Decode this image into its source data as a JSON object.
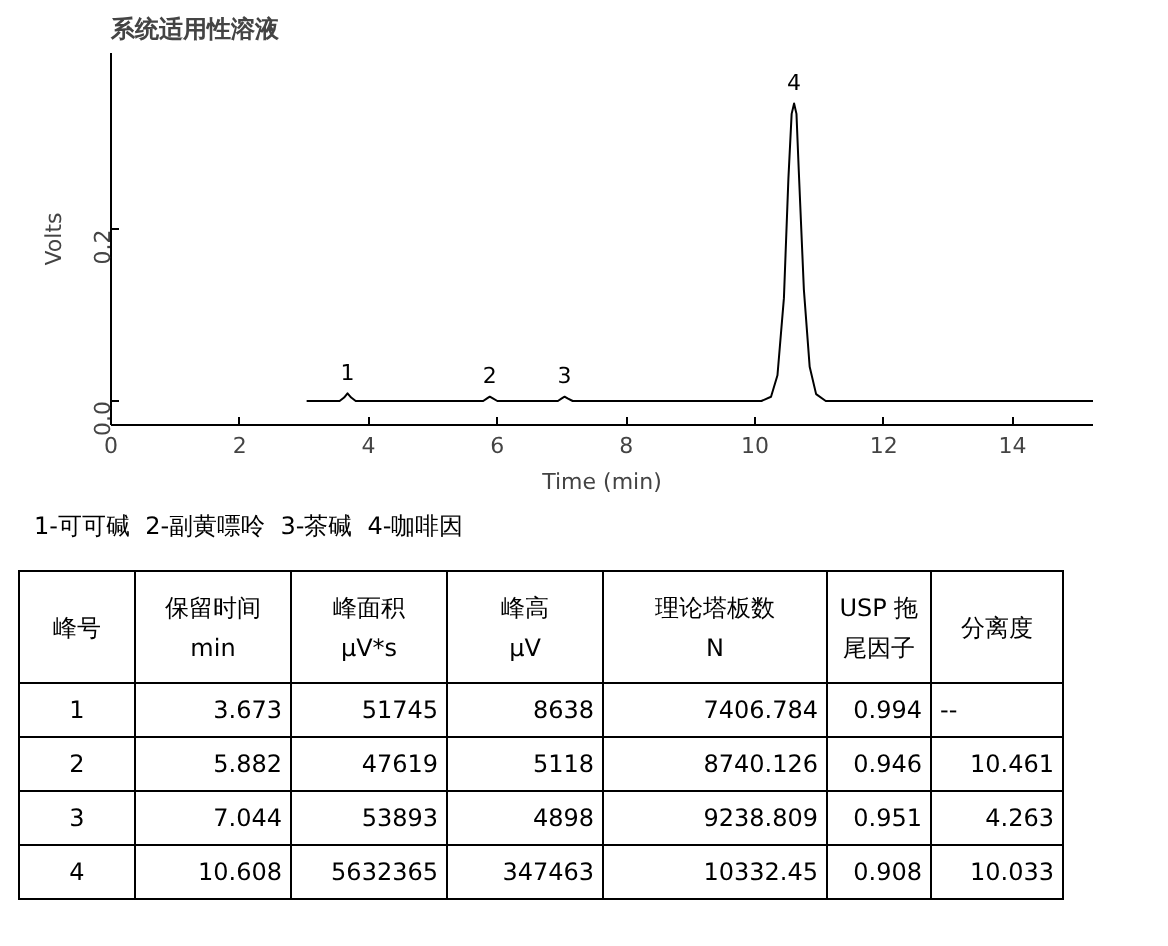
{
  "chart_data": {
    "type": "line",
    "title": "系统适用性溶液",
    "xlabel": "Time (min)",
    "ylabel": "Volts",
    "x": [
      3.05,
      3.55,
      3.62,
      3.673,
      3.73,
      3.8,
      5.78,
      5.84,
      5.882,
      5.93,
      6.0,
      6.94,
      7.0,
      7.044,
      7.09,
      7.17,
      10.1,
      10.25,
      10.35,
      10.45,
      10.52,
      10.57,
      10.608,
      10.645,
      10.68,
      10.76,
      10.85,
      10.95,
      11.1,
      15.25
    ],
    "series": [
      {
        "color": "#000000",
        "values": [
          0,
          0,
          0.004,
          0.009,
          0.004,
          0,
          0,
          0.003,
          0.005,
          0.003,
          0,
          0,
          0.003,
          0.005,
          0.003,
          0,
          0,
          0.005,
          0.03,
          0.12,
          0.26,
          0.335,
          0.347,
          0.335,
          0.27,
          0.13,
          0.04,
          0.008,
          0,
          0
        ]
      }
    ],
    "xlim": [
      0,
      15.25
    ],
    "ylim": [
      -0.028,
      0.406
    ],
    "xticks": [
      0,
      2,
      4,
      6,
      8,
      10,
      12,
      14
    ],
    "yticks": [
      {
        "value": 0,
        "label": "0.0"
      },
      {
        "value": 0.2,
        "label": "0.2"
      }
    ],
    "grid": false,
    "marker": "none",
    "line_style": "solid",
    "annotations": [
      {
        "text": "1",
        "x": 3.673,
        "y": 0.0086
      },
      {
        "text": "2",
        "x": 5.882,
        "y": 0.0051
      },
      {
        "text": "3",
        "x": 7.044,
        "y": 0.0049
      },
      {
        "text": "4",
        "x": 10.608,
        "y": 0.347
      },
      "1-可可碱  2-副黄嘌呤  3-茶碱  4-咖啡因",
      "峰号",
      "保留时间\nmin",
      "峰面积\nμV*s",
      "峰高\nμV",
      "理论塔板数\nN",
      "USP 拖尾因子",
      "分离度",
      "1",
      "3.673",
      "51745",
      "8638",
      "7406.784",
      "0.994",
      "--",
      "2",
      "5.882",
      "47619",
      "5118",
      "8740.126",
      "0.946",
      "10.461",
      "3",
      "7.044",
      "53893",
      "4898",
      "9238.809",
      "0.951",
      "4.263",
      "4",
      "10.608",
      "5632365",
      "347463",
      "10332.45",
      "0.908",
      "10.033"
    ]
  }
}
